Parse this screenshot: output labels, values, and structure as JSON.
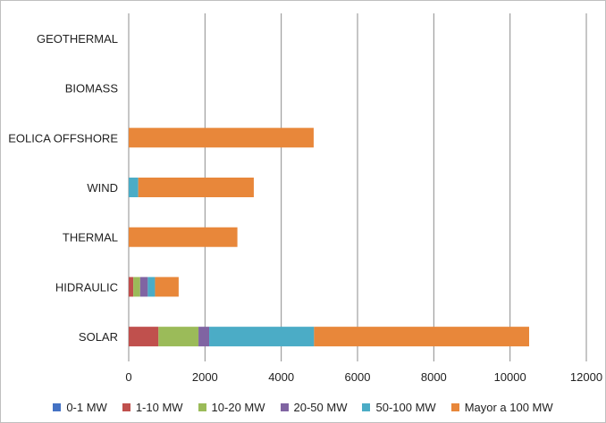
{
  "chart_data": {
    "type": "bar",
    "orientation": "horizontal",
    "stacked": true,
    "title": "",
    "xlabel": "",
    "ylabel": "",
    "categories": [
      "SOLAR",
      "HIDRAULIC",
      "THERMAL",
      "WIND",
      "EOLICA OFFSHORE",
      "BIOMASS",
      "GEOTHERMAL"
    ],
    "series": [
      {
        "name": "0-1 MW",
        "color": "#4472c4",
        "values": [
          0,
          0,
          0,
          0,
          0,
          0,
          0
        ]
      },
      {
        "name": "1-10 MW",
        "color": "#c0504d",
        "values": [
          780,
          120,
          0,
          0,
          0,
          0,
          0
        ]
      },
      {
        "name": "10-20 MW",
        "color": "#9bbb59",
        "values": [
          1050,
          180,
          0,
          0,
          0,
          0,
          0
        ]
      },
      {
        "name": "20-50 MW",
        "color": "#8064a2",
        "values": [
          280,
          200,
          0,
          0,
          0,
          0,
          0
        ]
      },
      {
        "name": "50-100 MW",
        "color": "#4bacc6",
        "values": [
          2750,
          190,
          0,
          250,
          0,
          0,
          0
        ]
      },
      {
        "name": "Mayor a 100 MW",
        "color": "#e8873a",
        "values": [
          5640,
          620,
          2850,
          3030,
          4850,
          0,
          0
        ]
      }
    ],
    "xlim": [
      0,
      12000
    ],
    "x_ticks": [
      0,
      2000,
      4000,
      6000,
      8000,
      10000,
      12000
    ],
    "grid": true,
    "legend_position": "bottom"
  }
}
